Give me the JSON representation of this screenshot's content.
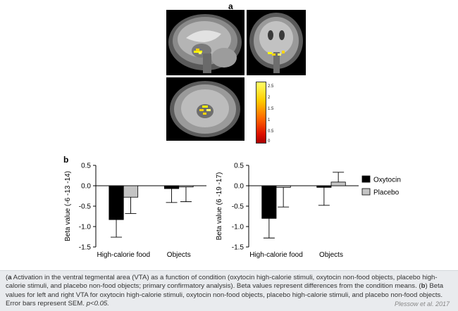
{
  "panel_a_label": "a",
  "panel_b_label": "b",
  "colorbar": {
    "ticks": [
      "2.5",
      "2",
      "1.5",
      "1",
      "0.5",
      "0"
    ],
    "colors": [
      "#ffff66",
      "#ffcc00",
      "#ff6600",
      "#dd1100",
      "#aa0000"
    ]
  },
  "colors": {
    "oxytocin": "#000000",
    "placebo": "#c4c4c4"
  },
  "legend": {
    "oxytocin": "Oxytocin",
    "placebo": "Placebo"
  },
  "chart_data": [
    {
      "type": "bar",
      "ylabel": "Beta value (-6 -13 -14)",
      "categories": [
        "High-calorie food",
        "Objects"
      ],
      "ylim": [
        -1.5,
        0.5
      ],
      "yticks": [
        "0.5",
        "0.0",
        "-0.5",
        "-1.0",
        "-1.5"
      ],
      "series": [
        {
          "name": "Oxytocin",
          "values": [
            -0.83,
            -0.07
          ],
          "errors": [
            0.43,
            0.34
          ]
        },
        {
          "name": "Placebo",
          "values": [
            -0.28,
            -0.03
          ],
          "errors": [
            0.4,
            0.36
          ]
        }
      ]
    },
    {
      "type": "bar",
      "ylabel": "Beta value (6 -19 -17)",
      "categories": [
        "High-calorie food",
        "Objects"
      ],
      "ylim": [
        -1.5,
        0.5
      ],
      "yticks": [
        "0.5",
        "0.0",
        "-0.5",
        "-1.0",
        "-1.5"
      ],
      "series": [
        {
          "name": "Oxytocin",
          "values": [
            -0.8,
            -0.04
          ],
          "errors": [
            0.48,
            0.44
          ]
        },
        {
          "name": "Placebo",
          "values": [
            -0.04,
            0.09
          ],
          "errors": [
            0.48,
            0.24
          ]
        }
      ]
    }
  ],
  "caption": {
    "a_label": "a",
    "a_text": " Activation in the ventral tegmental area (VTA) as a function of condition (oxytocin high-calorie stimuli, oxytocin non-food objects, placebo high-calorie stimuli, and placebo non-food objects; primary confirmatory analysis). Beta values represent differences from the condition means. (",
    "b_label": "b",
    "b_text": ") Beta values for left and right VTA for oxytocin high-calorie stimuli, oxytocin non-food objects, placebo high-calorie stimuli, and placebo non-food objects. Error bars represent SEM. ",
    "p_text": "p<0.05.",
    "credit": "Plessow et al. 2017"
  }
}
